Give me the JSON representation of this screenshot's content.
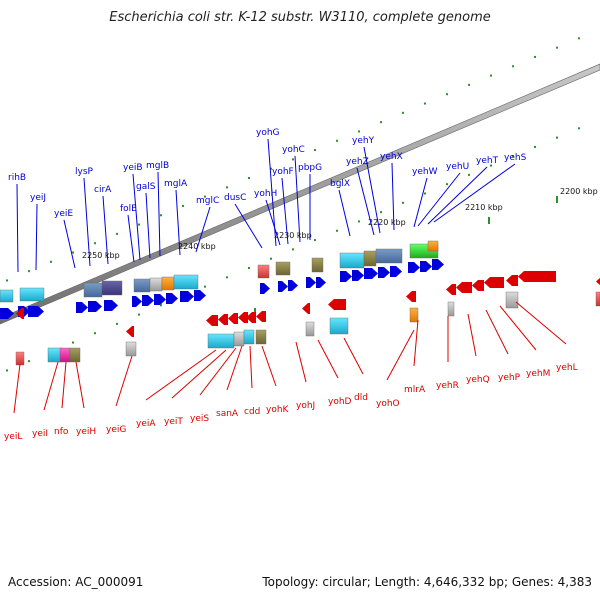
{
  "title": "Escherichia coli str. K-12 substr. W3110, complete genome",
  "footer": {
    "accession": "Accession: AC_000091",
    "summary": "Topology: circular; Length: 4,646,332 bp; Genes: 4,383"
  },
  "colors": {
    "forward": "#0000dd",
    "reverse": "#dd0000",
    "axis": "#808080",
    "ticks": "#2f8f2f",
    "label_text": "#111111"
  },
  "axis_ticks": [
    "2200 kbp",
    "2210 kbp",
    "2220 kbp",
    "2230 kbp",
    "2240 kbp",
    "2250 kbp"
  ],
  "forward_genes": [
    "rihB",
    "yeiJ",
    "yeiE",
    "lysP",
    "cirA",
    "folE",
    "yeiB",
    "galS",
    "mglB",
    "mglA",
    "mglC",
    "dusC",
    "yohG",
    "yohH",
    "yohF",
    "yohC",
    "pbpG",
    "bglX",
    "yehZ",
    "yehY",
    "yehX",
    "yehW",
    "yehU",
    "yehT",
    "yehS"
  ],
  "reverse_genes": [
    "yeiL",
    "yeiI",
    "nfo",
    "yeiH",
    "yeiG",
    "yeiA",
    "yeiT",
    "yeiS",
    "sanA",
    "cdd",
    "yohK",
    "yohJ",
    "yohD",
    "dld",
    "yohO",
    "mlrA",
    "yehR",
    "yehQ",
    "yehP",
    "yehM",
    "yehL"
  ]
}
